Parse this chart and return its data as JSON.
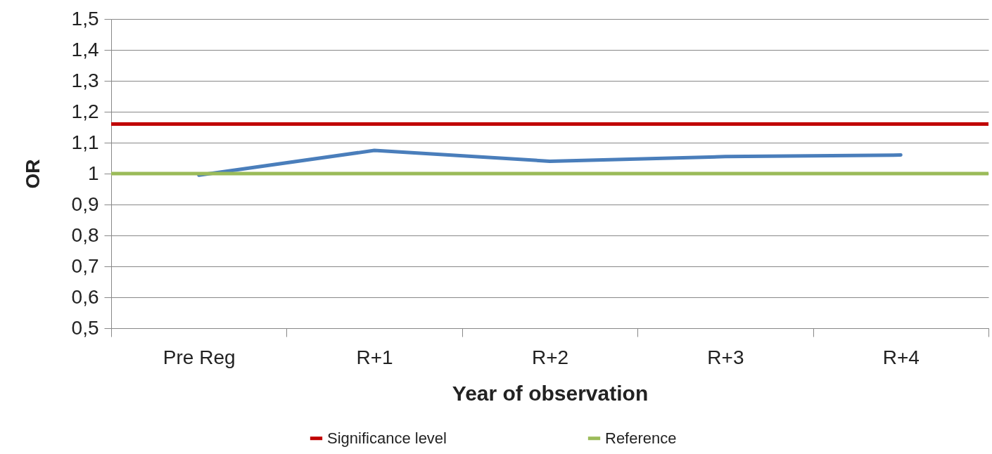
{
  "chart_data": {
    "type": "line",
    "xlabel": "Year of observation",
    "ylabel": "OR",
    "categories": [
      "Pre Reg",
      "R+1",
      "R+2",
      "R+3",
      "R+4"
    ],
    "series": [
      {
        "color": "#4a7ebb",
        "values": [
          0.995,
          1.075,
          1.04,
          1.055,
          1.06
        ]
      }
    ],
    "ylim": [
      0.5,
      1.5
    ],
    "yticks": [
      {
        "value": 0.5,
        "label": "0,5"
      },
      {
        "value": 0.6,
        "label": "0,6"
      },
      {
        "value": 0.7,
        "label": "0,7"
      },
      {
        "value": 0.8,
        "label": "0,8"
      },
      {
        "value": 0.9,
        "label": "0,9"
      },
      1,
      {
        "value": 1.1,
        "label": "1,1"
      },
      {
        "value": 1.2,
        "label": "1,2"
      },
      {
        "value": 1.3,
        "label": "1,3"
      },
      {
        "value": 1.4,
        "label": "1,4"
      },
      {
        "value": 1.5,
        "label": "1,5"
      }
    ],
    "ref_lines": [
      {
        "axis": "y",
        "value": 1.16,
        "label": "Significance level",
        "color": "#c00000"
      },
      {
        "axis": "y",
        "value": 1.0,
        "label": "Reference",
        "color": "#9bbb59"
      }
    ],
    "grid": "y",
    "legend": "bottom",
    "marker": "none",
    "line_style": "solid"
  }
}
